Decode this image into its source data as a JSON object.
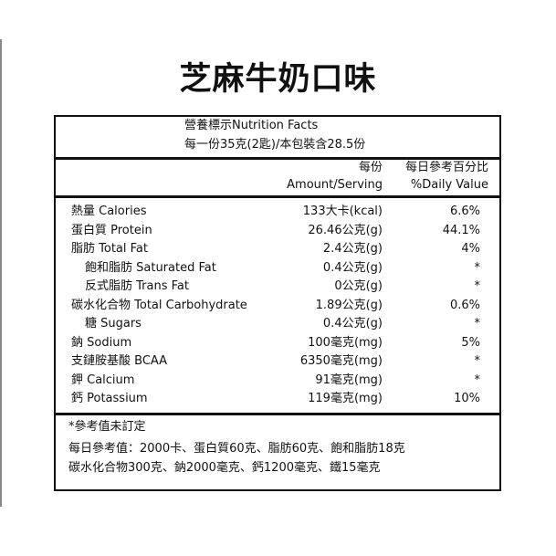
{
  "title": "芝麻牛奶口味",
  "header": {
    "heading": "營養標示Nutrition Facts",
    "serving": "每一份35克(2匙)/本包裝含28.5份"
  },
  "columns": {
    "amount_zh": "每份",
    "amount_en": "Amount/Serving",
    "dv_zh": "每日參考百分比",
    "dv_en": "%Daily Value"
  },
  "rows": [
    {
      "label": "熱量 Calories",
      "amount": "133大卡(kcal)",
      "dv": "6.6%",
      "indent": false
    },
    {
      "label": "蛋白質 Protein",
      "amount": "26.46公克(g)",
      "dv": "44.1%",
      "indent": false
    },
    {
      "label": "脂肪 Total Fat",
      "amount": "2.4公克(g)",
      "dv": "4%",
      "indent": false
    },
    {
      "label": "飽和脂肪 Saturated Fat",
      "amount": "0.4公克(g)",
      "dv": "*",
      "indent": true
    },
    {
      "label": "反式脂肪 Trans Fat",
      "amount": "0公克(g)",
      "dv": "*",
      "indent": true
    },
    {
      "label": "碳水化合物 Total Carbohydrate",
      "amount": "1.89公克(g)",
      "dv": "0.6%",
      "indent": false
    },
    {
      "label": "糖 Sugars",
      "amount": "0.4公克(g)",
      "dv": "*",
      "indent": true
    },
    {
      "label": "鈉 Sodium",
      "amount": "100毫克(mg)",
      "dv": "5%",
      "indent": false
    },
    {
      "label": "支鏈胺基酸 BCAA",
      "amount": "6350毫克(mg)",
      "dv": "*",
      "indent": false
    },
    {
      "label": "鉀 Calcium",
      "amount": "91毫克(mg)",
      "dv": "*",
      "indent": false
    },
    {
      "label": "鈣 Potassium",
      "amount": "119毫克(mg)",
      "dv": "10%",
      "indent": false
    }
  ],
  "footer": {
    "note": "*參考值未訂定",
    "line1": "每日參考值：2000卡、蛋白質60克、脂肪60克、飽和脂肪18克",
    "line2": "碳水化合物300克、鈉2000毫克、鈣1200毫克、鐵15毫克"
  }
}
